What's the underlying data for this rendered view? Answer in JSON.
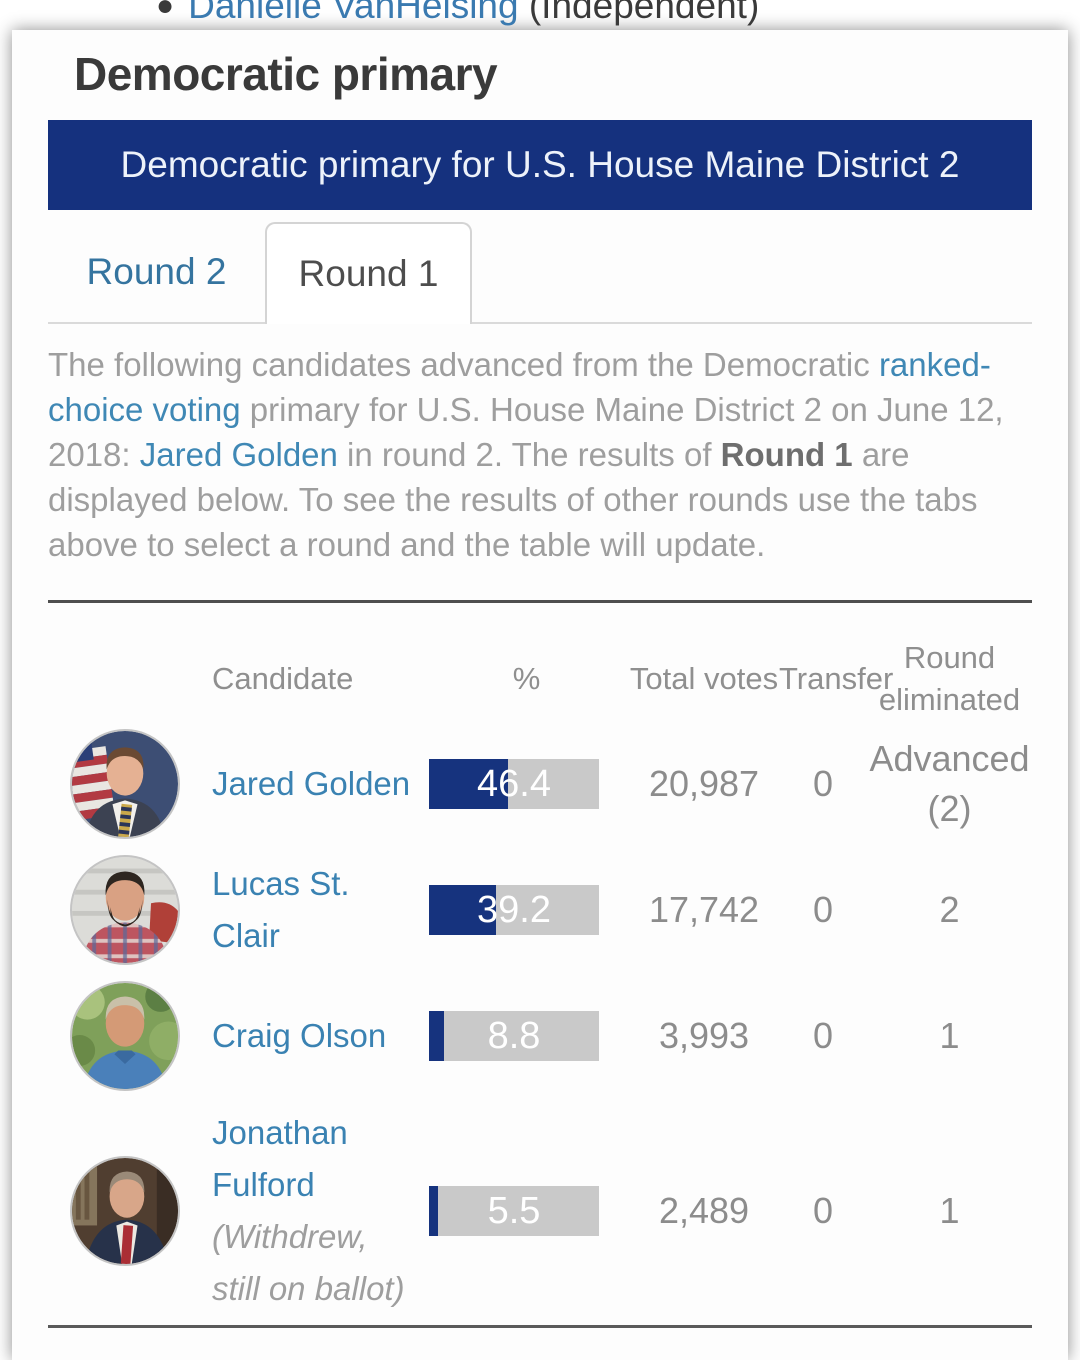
{
  "top_bar": {
    "bullet": "•",
    "link": "Danielle VanHelsing",
    "suffix": " (Independent)"
  },
  "section": {
    "title": "Democratic primary"
  },
  "banner": {
    "title": "Democratic primary for U.S. House Maine District 2"
  },
  "tabs": [
    {
      "label": "Round 2",
      "active": false
    },
    {
      "label": "Round 1",
      "active": true
    }
  ],
  "description": {
    "part1": "The following candidates advanced from the Democratic ",
    "link1": "ranked-choice voting",
    "part2": " primary for U.S. House Maine District 2 on June 12, 2018: ",
    "link2": "Jared Golden",
    "part3": " in round 2. The results of ",
    "bold": "Round 1",
    "part4": " are displayed below. To see the results of other rounds use the tabs above to select a round and the table will update."
  },
  "table": {
    "headers": [
      "Candidate",
      "%",
      "Total votes",
      "Transfer",
      "Round eliminated"
    ],
    "rows": [
      {
        "name": "Jared Golden",
        "note": "",
        "pct": 46.4,
        "pct_label": "46.4",
        "votes": "20,987",
        "transfer": "0",
        "round": "Advanced (2)",
        "photo": "jared-golden-photo"
      },
      {
        "name": "Lucas St. Clair",
        "note": "",
        "pct": 39.2,
        "pct_label": "39.2",
        "votes": "17,742",
        "transfer": "0",
        "round": "2",
        "photo": "lucas-st-clair-photo"
      },
      {
        "name": "Craig Olson",
        "note": "",
        "pct": 8.8,
        "pct_label": "8.8",
        "votes": "3,993",
        "transfer": "0",
        "round": "1",
        "photo": "craig-olson-photo"
      },
      {
        "name": "Jonathan Fulford",
        "note": "(Withdrew, still on ballot)",
        "pct": 5.5,
        "pct_label": "5.5",
        "votes": "2,489",
        "transfer": "0",
        "round": "1",
        "photo": "jonathan-fulford-photo"
      }
    ]
  },
  "colors": {
    "banner_navy": "#15317e",
    "bar_fill_navy": "#16337e",
    "bar_track_gray": "#c9c9c9",
    "link_blue": "#3f88b5",
    "candidate_link_blue": "#3a82b2",
    "tab_inactive_blue": "#35749f",
    "tab_active_text": "#4d4d4d",
    "body_text_gray": "#9e9e9e",
    "table_text_gray": "#8c8c8c",
    "heading_dark": "#3a3a3a",
    "divider_dark": "#4f4f4f"
  }
}
